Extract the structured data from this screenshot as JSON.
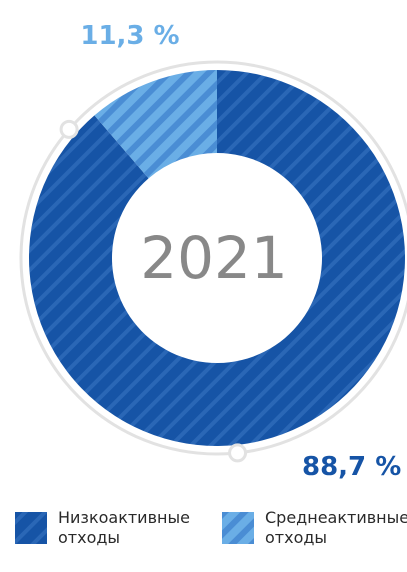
{
  "chart_data": {
    "type": "pie",
    "center_label": "2021",
    "slices": [
      {
        "label_lines": [
          "Низкоактивные",
          "отходы"
        ],
        "value": 88.7,
        "value_label": "88,7 %",
        "color": "#1654a6",
        "stripe_color": "#2a67b6"
      },
      {
        "label_lines": [
          "Среднеактивные",
          "отходы"
        ],
        "value": 11.3,
        "value_label": "11,3 %",
        "color": "#6aaee6",
        "stripe_color": "#4a8dd4"
      }
    ],
    "outer_ring_color": "#e2e2e2",
    "label_colors": [
      "#1654a6",
      "#6aaee6"
    ],
    "center_label_color": "#888888",
    "legend_position": "bottom"
  }
}
